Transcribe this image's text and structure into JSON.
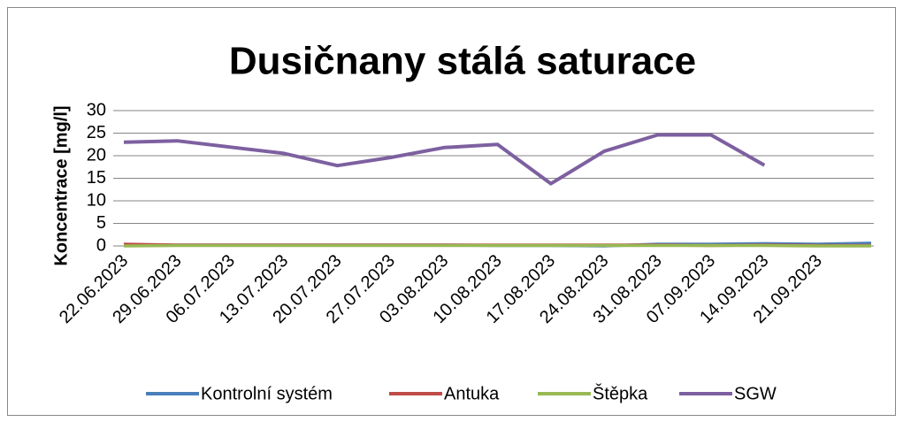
{
  "chart_data": {
    "type": "line",
    "title": "Dusičnany stálá saturace",
    "y_label": "Koncentrace [mg/l]",
    "categories": [
      "22.06.2023",
      "29.06.2023",
      "06.07.2023",
      "13.07.2023",
      "20.07.2023",
      "27.07.2023",
      "03.08.2023",
      "10.08.2023",
      "17.08.2023",
      "24.08.2023",
      "31.08.2023",
      "07.09.2023",
      "14.09.2023",
      "21.09.2023",
      null
    ],
    "series": [
      {
        "name": "Kontrolní systém",
        "color": "#4a7ebb",
        "values": [
          0.2,
          0.2,
          0.2,
          0.2,
          0.2,
          0.2,
          0.2,
          0.1,
          0.1,
          0,
          0.4,
          0.4,
          0.5,
          0.4,
          0.6
        ]
      },
      {
        "name": "Antuka",
        "color": "#be4b48",
        "values": [
          0.4,
          0.2,
          0.2,
          0.2,
          0.2,
          0.2,
          0.2,
          0.2,
          0.2,
          0.2,
          0.2,
          0.1,
          0.2,
          0.1,
          0.1
        ]
      },
      {
        "name": "Štěpka",
        "color": "#98b954",
        "values": [
          0,
          0.1,
          0.1,
          0.1,
          0.1,
          0.1,
          0.1,
          0.1,
          0.1,
          0.1,
          0.1,
          0.1,
          0.1,
          0,
          0
        ]
      },
      {
        "name": "SGW",
        "color": "#7d60a0",
        "values": [
          23,
          23.3,
          21.9,
          20.5,
          17.8,
          19.6,
          21.8,
          22.5,
          13.8,
          21,
          24.6,
          24.6,
          17.9,
          null,
          null
        ]
      }
    ],
    "ylim": [
      0,
      30
    ],
    "yticks": [
      0,
      5,
      10,
      15,
      20,
      25,
      30
    ],
    "grid": true,
    "legend": "bottom"
  }
}
